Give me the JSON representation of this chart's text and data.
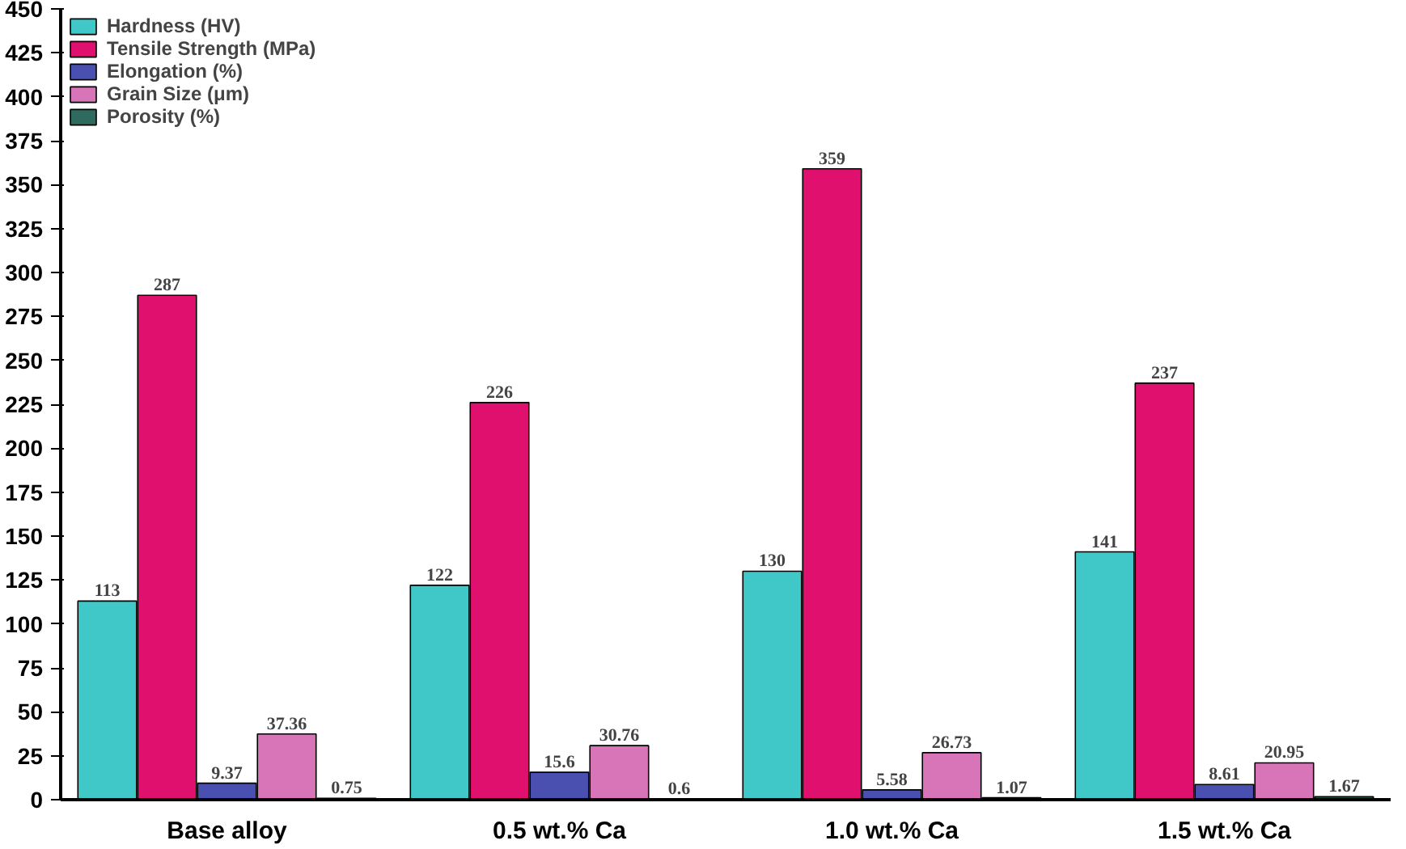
{
  "chart_data": {
    "type": "bar",
    "categories": [
      "Base alloy",
      "0.5 wt.% Ca",
      "1.0 wt.% Ca",
      "1.5 wt.% Ca"
    ],
    "series": [
      {
        "name": "Hardness (HV)",
        "color": "#40c8c8",
        "values": [
          113,
          122,
          130,
          141
        ]
      },
      {
        "name": "Tensile Strength (MPa)",
        "color": "#e0106e",
        "values": [
          287,
          226,
          359,
          237
        ]
      },
      {
        "name": "Elongation (%)",
        "color": "#4a50b0",
        "values": [
          9.37,
          15.6,
          5.58,
          8.61
        ]
      },
      {
        "name": "Grain Size (μm)",
        "color": "#d874b8",
        "values": [
          37.36,
          30.76,
          26.73,
          20.95
        ]
      },
      {
        "name": "Porosity (%)",
        "color": "#2f6a5e",
        "values": [
          0.75,
          0.6,
          1.07,
          1.67
        ]
      }
    ],
    "ylim": [
      0,
      450
    ],
    "yticks": [
      0,
      25,
      50,
      75,
      100,
      125,
      150,
      175,
      200,
      225,
      250,
      275,
      300,
      325,
      350,
      375,
      400,
      425,
      450
    ],
    "data_labels": true,
    "legend": "top left",
    "grid": false
  }
}
